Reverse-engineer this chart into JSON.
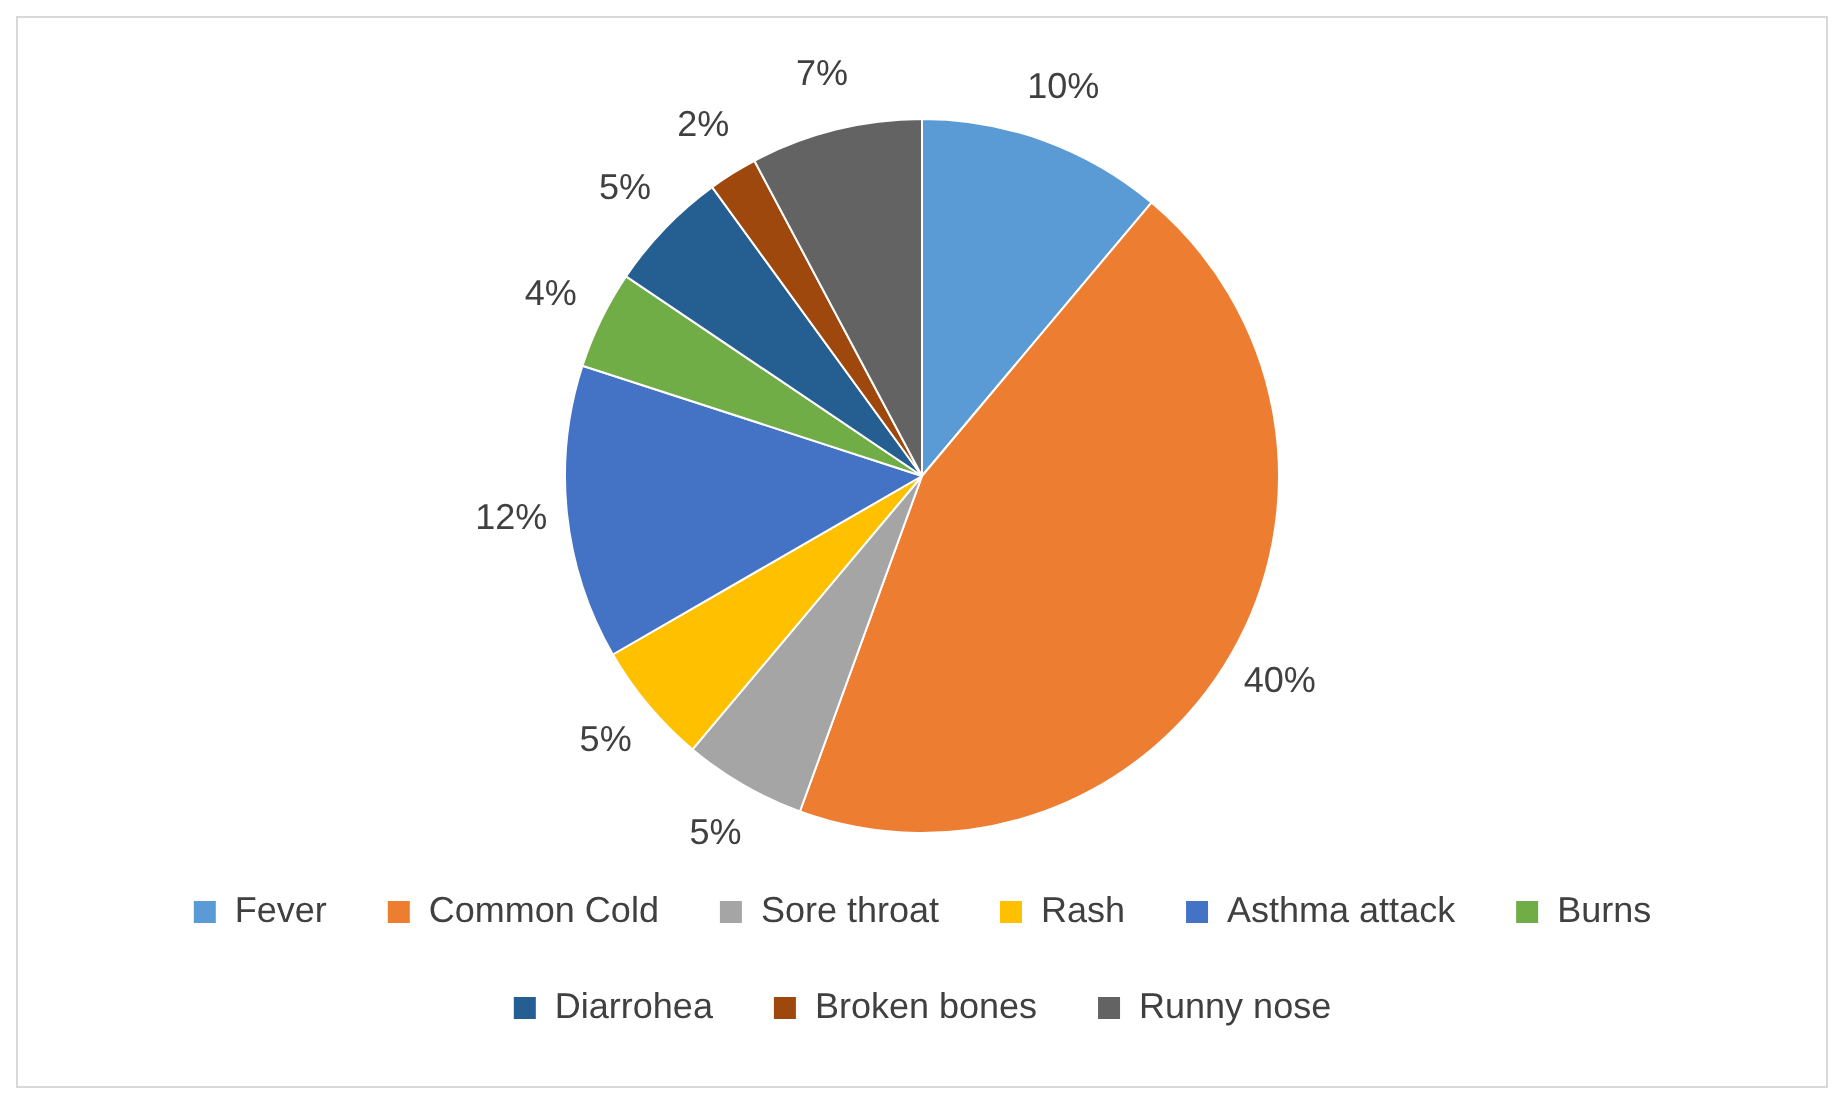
{
  "chart_data": {
    "type": "pie",
    "categories": [
      "Fever",
      "Common Cold",
      "Sore throat",
      "Rash",
      "Asthma attack",
      "Burns",
      "Diarrohea",
      "Broken bones",
      "Runny nose"
    ],
    "values": [
      10,
      40,
      5,
      5,
      12,
      4,
      5,
      2,
      7
    ],
    "colors": [
      "#5b9bd5",
      "#ed7d31",
      "#a5a5a5",
      "#ffc000",
      "#4472c4",
      "#70ad47",
      "#255e91",
      "#9e480e",
      "#636363"
    ],
    "value_labels": [
      "10%",
      "40%",
      "5%",
      "5%",
      "12%",
      "4%",
      "5%",
      "2%",
      "7%"
    ],
    "legend": "bottom"
  }
}
